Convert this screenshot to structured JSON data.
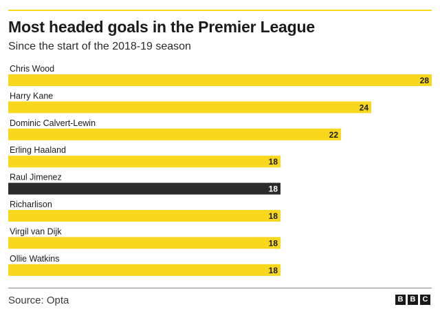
{
  "title": "Most headed goals in the Premier League",
  "subtitle": "Since the start of the 2018-19 season",
  "source": "Source: Opta",
  "logo": [
    "B",
    "B",
    "C"
  ],
  "colors": {
    "accent": "#f9d71c",
    "highlight": "#2b2b2b"
  },
  "chart_data": {
    "type": "bar",
    "orientation": "horizontal",
    "categories": [
      "Chris Wood",
      "Harry Kane",
      "Dominic Calvert-Lewin",
      "Erling Haaland",
      "Raul Jimenez",
      "Richarlison",
      "Virgil van Dijk",
      "Ollie Watkins"
    ],
    "values": [
      28,
      24,
      22,
      18,
      18,
      18,
      18,
      18
    ],
    "highlighted": [
      "Raul Jimenez"
    ],
    "xlim": [
      0,
      28
    ],
    "grid": false,
    "legend": false
  }
}
